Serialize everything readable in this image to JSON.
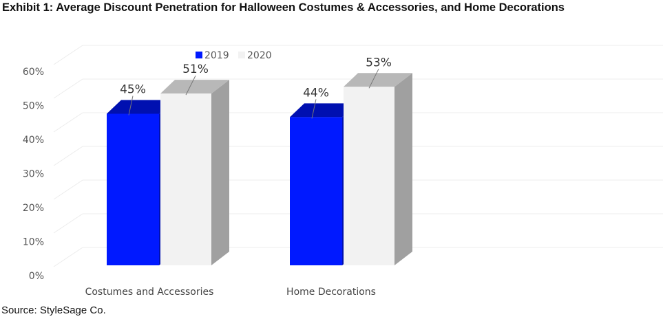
{
  "title": "Exhibit 1: Average Discount Penetration for Halloween Costumes & Accessories, and Home Decorations",
  "source": "Source: StyleSage Co.",
  "chart_data": {
    "type": "bar",
    "style": "3d-clustered-column",
    "categories": [
      "Costumes and Accessories",
      "Home Decorations"
    ],
    "series": [
      {
        "name": "2019",
        "values": [
          45,
          44
        ],
        "labels": [
          "45%",
          "44%"
        ],
        "color": "#0019ff",
        "top_color": "#0010b0"
      },
      {
        "name": "2020",
        "values": [
          51,
          53
        ],
        "labels": [
          "51%",
          "53%"
        ],
        "color": "#f2f2f2",
        "top_color": "#b8b8b8",
        "side_color": "#a0a0a0"
      }
    ],
    "yticks": [
      "0%",
      "10%",
      "20%",
      "30%",
      "40%",
      "50%",
      "60%"
    ],
    "ylim": [
      0,
      60
    ],
    "grid": true,
    "legend": "top-center"
  }
}
